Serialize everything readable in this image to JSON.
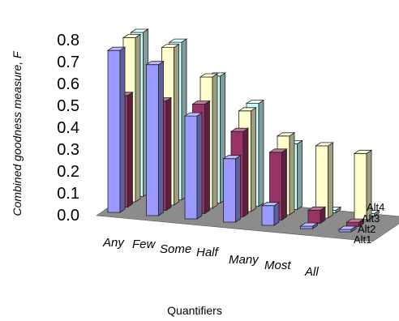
{
  "chart_data": {
    "type": "bar",
    "subtype": "3d-column",
    "title": "",
    "xlabel": "Quantifiers",
    "ylabel": "Combined goodness measure, F",
    "ylim": [
      0,
      0.8
    ],
    "yticks": [
      "0.0",
      "0.1",
      "0.2",
      "0.3",
      "0.4",
      "0.5",
      "0.6",
      "0.7",
      "0.8"
    ],
    "categories": [
      "Any",
      "Few",
      "Some",
      "Half",
      "Many",
      "Most",
      "All"
    ],
    "series": [
      {
        "name": "Alt1",
        "color": "#9999ff",
        "values": [
          0.74,
          0.69,
          0.47,
          0.29,
          0.09,
          0.01,
          0.01
        ]
      },
      {
        "name": "Alt2",
        "color": "#993366",
        "values": [
          0.51,
          0.5,
          0.5,
          0.39,
          0.31,
          0.06,
          0.02
        ]
      },
      {
        "name": "Alt3",
        "color": "#ffffcc",
        "values": [
          0.75,
          0.72,
          0.6,
          0.46,
          0.36,
          0.33,
          0.31
        ]
      },
      {
        "name": "Alt4",
        "color": "#ccffff",
        "values": [
          0.75,
          0.72,
          0.58,
          0.47,
          0.3,
          0.01,
          0.01
        ]
      }
    ],
    "grid": false,
    "legend": "none"
  }
}
